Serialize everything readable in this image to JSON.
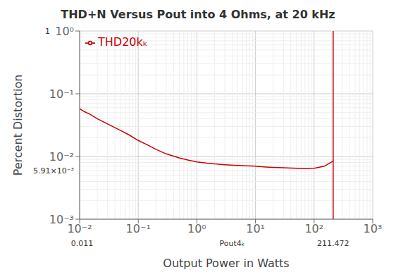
{
  "chart_data": {
    "type": "line",
    "title": "THD+N Versus Pout into 4 Ohms, at 20 kHz",
    "x_label": "Output Power in Watts",
    "y_label": "Percent Distortion",
    "log": true,
    "grid": true,
    "legend": "upper left",
    "xlim": [
      0.01,
      1000
    ],
    "ylim": [
      0.001,
      1.0
    ],
    "xticks": [
      {
        "value": 0.01,
        "label": "10⁻²"
      },
      {
        "value": 0.1,
        "label": "10⁻¹"
      },
      {
        "value": 1,
        "label": "10⁰"
      },
      {
        "value": 10,
        "label": "10¹"
      },
      {
        "value": 100,
        "label": "10²"
      },
      {
        "value": 1000,
        "label": "10³"
      }
    ],
    "yticks": [
      {
        "value": 0.001,
        "label": "10⁻³"
      },
      {
        "value": 0.01,
        "label": "10⁻²"
      },
      {
        "value": 0.1,
        "label": "10⁻¹"
      },
      {
        "value": 1.0,
        "label": "10⁰"
      }
    ],
    "x": [
      0.01,
      0.012,
      0.015,
      0.02,
      0.03,
      0.05,
      0.07,
      0.1,
      0.15,
      0.2,
      0.3,
      0.5,
      0.7,
      1.0,
      1.5,
      2.0,
      3.0,
      5.0,
      7.0,
      10.0,
      15.0,
      20.0,
      30.0,
      50.0,
      70.0,
      100.0,
      150.0,
      211.472
    ],
    "series": [
      {
        "name": "THD20kₖ",
        "color": "#cc0000",
        "values": [
          0.058,
          0.052,
          0.047,
          0.04,
          0.033,
          0.026,
          0.022,
          0.018,
          0.015,
          0.013,
          0.011,
          0.0095,
          0.0088,
          0.0082,
          0.0078,
          0.0076,
          0.0074,
          0.0072,
          0.0071,
          0.007,
          0.0068,
          0.0067,
          0.0066,
          0.0065,
          0.0064,
          0.0065,
          0.007,
          0.0085
        ]
      }
    ],
    "vlines": [
      {
        "x": 211.472,
        "color": "#cc0000"
      }
    ],
    "annotations": [
      {
        "text": "0.011",
        "x": 0.011
      },
      {
        "text": "Pout4ₖ",
        "x": 4.0
      },
      {
        "text": "211.472",
        "x": 211.472
      },
      {
        "text": "1",
        "y": 1.0
      },
      {
        "text": "5.91×10⁻³",
        "y": 0.00591
      }
    ]
  }
}
